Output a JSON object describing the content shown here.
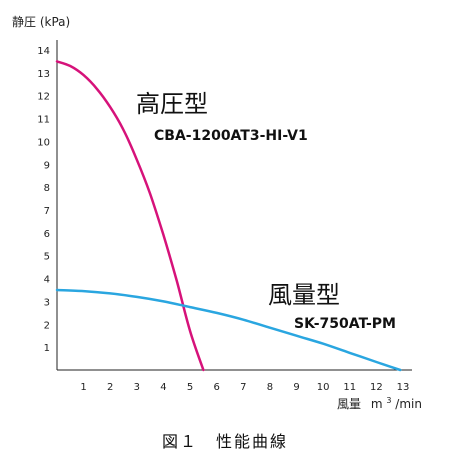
{
  "chart_data": {
    "type": "line",
    "ylabel": "静圧 (kPa)",
    "xlabel": "風量",
    "xunit_base": "m",
    "xunit_sup": "3",
    "xunit_tail": "/min",
    "xlim": [
      0,
      13
    ],
    "ylim": [
      0,
      14
    ],
    "xticks": [
      1,
      2,
      3,
      4,
      5,
      6,
      7,
      8,
      9,
      10,
      11,
      12,
      13
    ],
    "yticks": [
      1,
      2,
      3,
      4,
      5,
      6,
      7,
      8,
      9,
      10,
      11,
      12,
      13,
      14
    ],
    "grid": false,
    "series": [
      {
        "name": "高圧型",
        "model": "CBA-1200AT3-HI-V1",
        "color": "#d6127a",
        "points": [
          [
            0,
            13.5
          ],
          [
            0.5,
            13.3
          ],
          [
            1,
            12.9
          ],
          [
            1.5,
            12.3
          ],
          [
            2,
            11.5
          ],
          [
            2.5,
            10.5
          ],
          [
            3,
            9.2
          ],
          [
            3.5,
            7.7
          ],
          [
            4,
            5.9
          ],
          [
            4.5,
            3.9
          ],
          [
            5,
            1.7
          ],
          [
            5.5,
            0
          ]
        ]
      },
      {
        "name": "風量型",
        "model": "SK-750AT-PM",
        "color": "#2aa6e0",
        "points": [
          [
            0,
            3.5
          ],
          [
            1,
            3.45
          ],
          [
            2,
            3.35
          ],
          [
            3,
            3.2
          ],
          [
            4,
            3.0
          ],
          [
            5,
            2.75
          ],
          [
            6,
            2.5
          ],
          [
            7,
            2.2
          ],
          [
            8,
            1.85
          ],
          [
            9,
            1.5
          ],
          [
            10,
            1.15
          ],
          [
            11,
            0.75
          ],
          [
            12,
            0.35
          ],
          [
            12.9,
            0
          ]
        ]
      }
    ]
  },
  "caption": "図１　性能曲線"
}
